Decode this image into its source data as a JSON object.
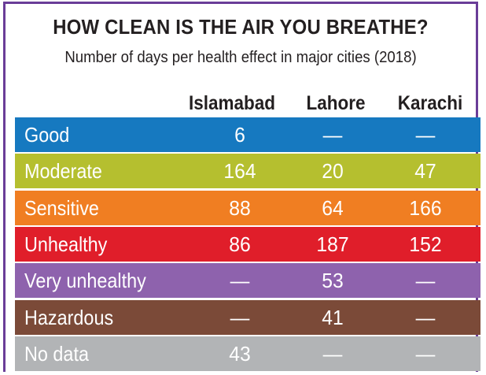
{
  "title": "HOW CLEAN IS THE AIR YOU BREATHE?",
  "subtitle": "Number of days per health effect in major cities (2018)",
  "chart_data": {
    "type": "table",
    "columns": [
      "Islamabad",
      "Lahore",
      "Karachi"
    ],
    "rows": [
      {
        "label": "Good",
        "color": "#1679c0",
        "values": [
          "6",
          "—",
          "—"
        ]
      },
      {
        "label": "Moderate",
        "color": "#b5bf2f",
        "values": [
          "164",
          "20",
          "47"
        ]
      },
      {
        "label": "Sensitive",
        "color": "#f07e22",
        "values": [
          "88",
          "64",
          "166"
        ]
      },
      {
        "label": "Unhealthy",
        "color": "#e01e2a",
        "values": [
          "86",
          "187",
          "152"
        ]
      },
      {
        "label": "Very unhealthy",
        "color": "#8e62ad",
        "values": [
          "—",
          "53",
          "—"
        ]
      },
      {
        "label": "Hazardous",
        "color": "#7b4a38",
        "values": [
          "—",
          "41",
          "—"
        ]
      },
      {
        "label": "No data",
        "color": "#b2b4b6",
        "values": [
          "43",
          "—",
          "—"
        ]
      }
    ]
  }
}
